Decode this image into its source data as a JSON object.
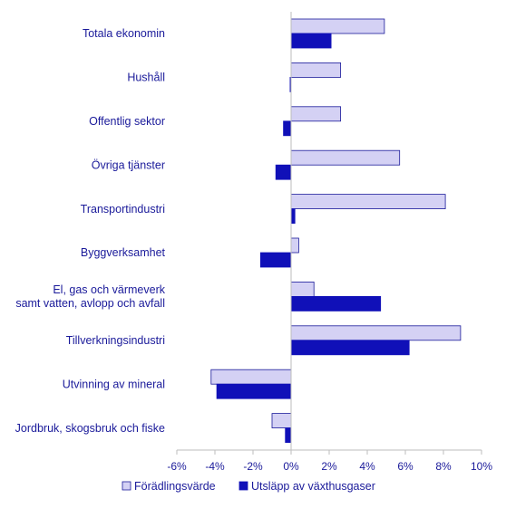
{
  "chart_data": {
    "type": "bar",
    "orientation": "horizontal",
    "categories": [
      "Totala ekonomin",
      "Hushåll",
      "Offentlig sektor",
      "Övriga tjänster",
      "Transportindustri",
      "Byggverksamhet",
      "El, gas och värmeverk samt vatten, avlopp och avfall",
      "Tillverkningsindustri",
      "Utvinning av mineral",
      "Jordbruk, skogsbruk och fiske"
    ],
    "category_lines": [
      [
        "Totala ekonomin"
      ],
      [
        "Hushåll"
      ],
      [
        "Offentlig sektor"
      ],
      [
        "Övriga tjänster"
      ],
      [
        "Transportindustri"
      ],
      [
        "Byggverksamhet"
      ],
      [
        "El, gas och värmeverk",
        "samt vatten, avlopp och avfall"
      ],
      [
        "Tillverkningsindustri"
      ],
      [
        "Utvinning av mineral"
      ],
      [
        "Jordbruk, skogsbruk och fiske"
      ]
    ],
    "series": [
      {
        "name": "Förädlingsvärde",
        "color": "#d4d1f4",
        "stroke": "#1a1a9a",
        "values": [
          4.9,
          2.6,
          2.6,
          5.7,
          8.1,
          0.4,
          1.2,
          8.9,
          -4.2,
          -1.0
        ]
      },
      {
        "name": "Utsläpp av växthusgaser",
        "color": "#1010b8",
        "stroke": "#1010b8",
        "values": [
          2.1,
          -0.05,
          -0.4,
          -0.8,
          0.2,
          -1.6,
          4.7,
          6.2,
          -3.9,
          -0.3
        ]
      }
    ],
    "x_ticks": [
      "-6%",
      "-4%",
      "-2%",
      "0%",
      "2%",
      "4%",
      "6%",
      "8%",
      "10%"
    ],
    "xlim": [
      -6,
      10
    ],
    "xlabel": "",
    "ylabel": "",
    "grid": false,
    "legend_position": "bottom"
  }
}
